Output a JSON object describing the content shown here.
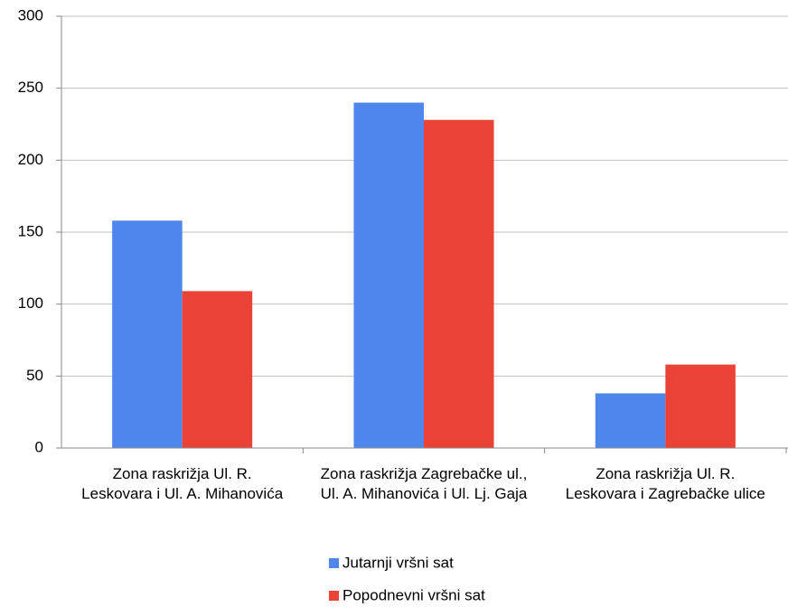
{
  "chart_data": {
    "type": "bar",
    "categories": [
      "Zona raskrižja Ul. R. Leskovara i Ul. A. Mihanovića",
      "Zona raskrižja Zagrebačke ul., Ul. A. Mihanovića i Ul. Lj. Gaja",
      "Zona raskrižja Ul. R. Leskovara i Zagrebačke ulice"
    ],
    "series": [
      {
        "name": "Jutarnji vršni sat",
        "color": "#4f86ec",
        "values": [
          158,
          240,
          38
        ]
      },
      {
        "name": "Popodnevni vršni sat",
        "color": "#ea4335",
        "values": [
          109,
          228,
          58
        ]
      }
    ],
    "ylim": [
      0,
      300
    ],
    "yticks": [
      0,
      50,
      100,
      150,
      200,
      250,
      300
    ],
    "grid": true,
    "legend": "bottom"
  }
}
